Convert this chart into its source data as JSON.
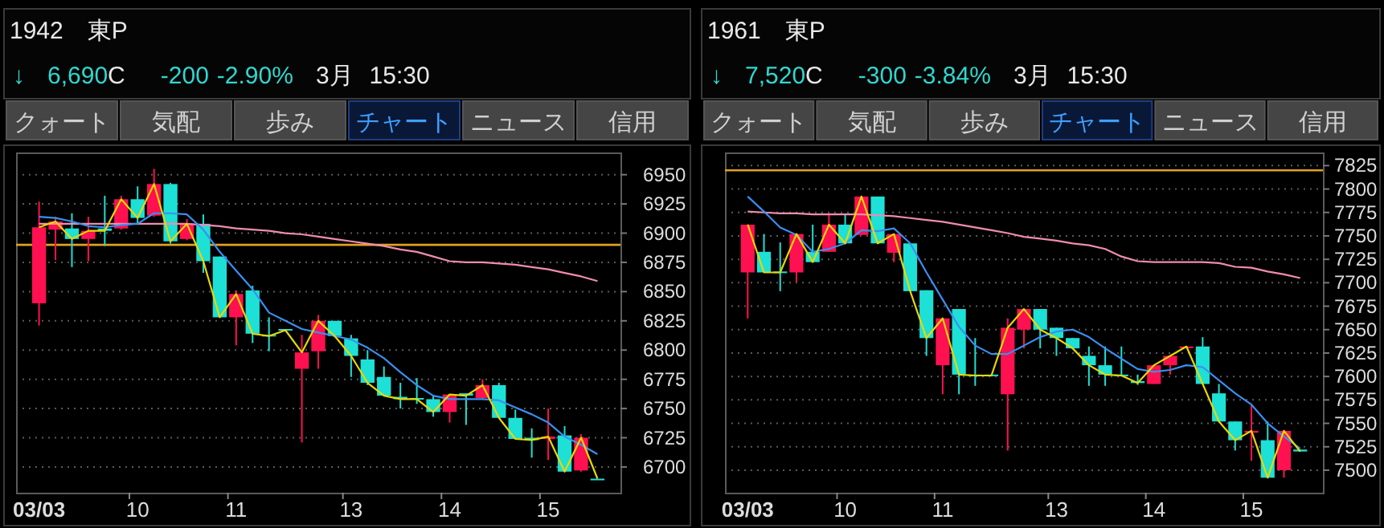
{
  "chart_data": [
    {
      "type": "candlestick",
      "title": "1942　東P",
      "subtitle": "↓ 6,690C -200 -2.90% 3月 15:30",
      "annotations": [
        "クォート",
        "気配",
        "歩み",
        "チャート",
        "ニュース",
        "信用"
      ],
      "categories": [
        "03/03",
        null,
        null,
        null,
        null,
        null,
        "10",
        null,
        null,
        null,
        null,
        null,
        "11",
        null,
        null,
        null,
        null,
        null,
        null,
        "13",
        null,
        null,
        null,
        null,
        null,
        "14",
        null,
        null,
        null,
        null,
        null,
        "15",
        null,
        null,
        null
      ],
      "ohlc": [
        [
          6840,
          6927,
          6821,
          6905
        ],
        [
          6903,
          6914,
          6877,
          6910
        ],
        [
          6904,
          6917,
          6871,
          6895
        ],
        [
          6895,
          6914,
          6876,
          6902
        ],
        [
          6904,
          6932,
          6889,
          6902
        ],
        [
          6904,
          6932,
          6903,
          6929
        ],
        [
          6929,
          6940,
          6907,
          6913
        ],
        [
          6915,
          6955,
          6914,
          6942
        ],
        [
          6942,
          6943,
          6891,
          6893
        ],
        [
          6895,
          6912,
          6894,
          6908
        ],
        [
          6908,
          6916,
          6866,
          6876
        ],
        [
          6880,
          6880,
          6828,
          6828
        ],
        [
          6828,
          6851,
          6804,
          6848
        ],
        [
          6851,
          6855,
          6806,
          6814
        ],
        [
          6813,
          6828,
          6799,
          6812
        ],
        [
          6818,
          6818,
          6816,
          6817
        ],
        [
          6784,
          6813,
          6721,
          6798
        ],
        [
          6799,
          6830,
          6784,
          6825
        ],
        [
          6825,
          6825,
          6811,
          6812
        ],
        [
          6810,
          6813,
          6777,
          6795
        ],
        [
          6792,
          6800,
          6770,
          6772
        ],
        [
          6777,
          6786,
          6761,
          6761
        ],
        [
          6760,
          6772,
          6750,
          6758
        ],
        [
          6759,
          6776,
          6754,
          6758
        ],
        [
          6758,
          6761,
          6743,
          6747
        ],
        [
          6747,
          6762,
          6738,
          6762
        ],
        [
          6763,
          6763,
          6736,
          6761
        ],
        [
          6759,
          6775,
          6758,
          6770
        ],
        [
          6770,
          6772,
          6742,
          6742
        ],
        [
          6742,
          6749,
          6724,
          6724
        ],
        [
          6725,
          6733,
          6708,
          6723
        ],
        [
          6724,
          6750,
          6706,
          6726
        ],
        [
          6727,
          6735,
          6696,
          6696
        ],
        [
          6697,
          6728,
          6696,
          6725
        ],
        [
          6690,
          6690,
          6690,
          6690
        ]
      ],
      "colors": [
        "#ff1050",
        "#ff1050",
        "#1de0d6",
        "#ff1050",
        "#1de0d6",
        "#ff1050",
        "#1de0d6",
        "#ff1050",
        "#1de0d6",
        "#ff1050",
        "#1de0d6",
        "#1de0d6",
        "#ff1050",
        "#1de0d6",
        "#1de0d6",
        "#1de0d6",
        "#ff1050",
        "#ff1050",
        "#1de0d6",
        "#1de0d6",
        "#1de0d6",
        "#1de0d6",
        "#1de0d6",
        "#1de0d6",
        "#1de0d6",
        "#ff1050",
        "#1de0d6",
        "#ff1050",
        "#1de0d6",
        "#1de0d6",
        "#1de0d6",
        "#ff1050",
        "#1de0d6",
        "#ff1050",
        "#1de0d6"
      ],
      "series": [
        {
          "type": "line",
          "color": "#f08cb0",
          "values": [
            6908,
            6908,
            6908,
            6908,
            6908,
            6908,
            6908,
            6908,
            6908,
            6908,
            6907,
            6906,
            6904,
            6903,
            6902,
            6900,
            6899,
            6897,
            6895,
            6893,
            6891,
            6889,
            6886,
            6884,
            6880,
            6876,
            6875,
            6875,
            6874,
            6873,
            6871,
            6869,
            6866,
            6863,
            6859
          ]
        },
        {
          "type": "line",
          "color": "#3a8ff0",
          "values": [
            6914,
            6913,
            6910,
            6906,
            6905,
            6907,
            6908,
            6917,
            6917,
            6916,
            6903,
            6884,
            6868,
            6852,
            6832,
            6825,
            6818,
            6815,
            6812,
            6809,
            6802,
            6793,
            6781,
            6770,
            6761,
            6758,
            6758,
            6758,
            6757,
            6751,
            6745,
            6738,
            6726,
            6719,
            6711
          ]
        },
        {
          "type": "line",
          "color": "#e8d800",
          "values": [
            6905,
            6910,
            6895,
            6902,
            6902,
            6929,
            6913,
            6942,
            6893,
            6908,
            6876,
            6828,
            6848,
            6814,
            6812,
            6817,
            6798,
            6825,
            6812,
            6795,
            6772,
            6761,
            6758,
            6758,
            6747,
            6762,
            6761,
            6770,
            6742,
            6724,
            6723,
            6726,
            6696,
            6725,
            6690
          ]
        }
      ],
      "ref_lines": [
        {
          "axis": "y",
          "value": 6890,
          "color": "#e0a020"
        }
      ],
      "ylim": [
        6678,
        6969
      ],
      "yticks": [
        6700,
        6725,
        6750,
        6775,
        6800,
        6825,
        6850,
        6875,
        6900,
        6925,
        6950
      ],
      "grid": "y"
    },
    {
      "type": "candlestick",
      "title": "1961　東P",
      "subtitle": "↓ 7,520C -300 -3.84% 3月 15:30",
      "annotations": [
        "クォート",
        "気配",
        "歩み",
        "チャート",
        "ニュース",
        "信用"
      ],
      "categories": [
        "03/03",
        null,
        null,
        null,
        null,
        null,
        "10",
        null,
        null,
        null,
        null,
        null,
        "11",
        null,
        null,
        null,
        null,
        null,
        null,
        "13",
        null,
        null,
        null,
        null,
        null,
        "14",
        null,
        null,
        null,
        null,
        null,
        "15",
        null,
        null,
        null
      ],
      "ohlc": [
        [
          7711,
          7762,
          7662,
          7762
        ],
        [
          7733,
          7752,
          7711,
          7711
        ],
        [
          7712,
          7743,
          7691,
          7711
        ],
        [
          7711,
          7752,
          7701,
          7752
        ],
        [
          7733,
          7762,
          7722,
          7722
        ],
        [
          7733,
          7774,
          7733,
          7762
        ],
        [
          7762,
          7774,
          7742,
          7742
        ],
        [
          7751,
          7792,
          7751,
          7792
        ],
        [
          7792,
          7792,
          7742,
          7742
        ],
        [
          7732,
          7752,
          7722,
          7752
        ],
        [
          7742,
          7742,
          7691,
          7691
        ],
        [
          7692,
          7692,
          7622,
          7641
        ],
        [
          7612,
          7662,
          7581,
          7662
        ],
        [
          7672,
          7672,
          7581,
          7602
        ],
        [
          7602,
          7641,
          7590,
          7601
        ],
        [
          7602,
          7602,
          7600,
          7601
        ],
        [
          7581,
          7662,
          7521,
          7652
        ],
        [
          7650,
          7672,
          7630,
          7672
        ],
        [
          7672,
          7672,
          7630,
          7650
        ],
        [
          7652,
          7652,
          7622,
          7641
        ],
        [
          7641,
          7641,
          7630,
          7630
        ],
        [
          7622,
          7632,
          7590,
          7612
        ],
        [
          7612,
          7632,
          7590,
          7602
        ],
        [
          7602,
          7632,
          7601,
          7601
        ],
        [
          7595,
          7602,
          7591,
          7593
        ],
        [
          7592,
          7612,
          7592,
          7612
        ],
        [
          7612,
          7622,
          7602,
          7622
        ],
        [
          7631,
          7632,
          7630,
          7632
        ],
        [
          7632,
          7642,
          7592,
          7592
        ],
        [
          7582,
          7592,
          7552,
          7552
        ],
        [
          7552,
          7552,
          7521,
          7532
        ],
        [
          7540,
          7570,
          7510,
          7542
        ],
        [
          7532,
          7552,
          7492,
          7492
        ],
        [
          7500,
          7542,
          7492,
          7542
        ],
        [
          7522,
          7522,
          7520,
          7520
        ]
      ],
      "colors": [
        "#ff1050",
        "#1de0d6",
        "#1de0d6",
        "#ff1050",
        "#1de0d6",
        "#ff1050",
        "#1de0d6",
        "#ff1050",
        "#1de0d6",
        "#ff1050",
        "#1de0d6",
        "#1de0d6",
        "#ff1050",
        "#1de0d6",
        "#1de0d6",
        "#1de0d6",
        "#ff1050",
        "#ff1050",
        "#1de0d6",
        "#1de0d6",
        "#1de0d6",
        "#1de0d6",
        "#1de0d6",
        "#1de0d6",
        "#1de0d6",
        "#ff1050",
        "#ff1050",
        "#ff1050",
        "#1de0d6",
        "#1de0d6",
        "#1de0d6",
        "#ff1050",
        "#1de0d6",
        "#ff1050",
        "#1de0d6"
      ],
      "series": [
        {
          "type": "line",
          "color": "#f08cb0",
          "values": [
            7776,
            7775,
            7774,
            7774,
            7773,
            7773,
            7773,
            7773,
            7772,
            7771,
            7769,
            7767,
            7765,
            7762,
            7759,
            7756,
            7753,
            7749,
            7747,
            7745,
            7742,
            7740,
            7736,
            7728,
            7723,
            7722,
            7722,
            7722,
            7722,
            7721,
            7717,
            7716,
            7712,
            7709,
            7705
          ]
        },
        {
          "type": "line",
          "color": "#3a8ff0",
          "values": [
            7792,
            7776,
            7759,
            7751,
            7733,
            7736,
            7742,
            7756,
            7755,
            7758,
            7742,
            7711,
            7682,
            7653,
            7633,
            7624,
            7624,
            7633,
            7642,
            7648,
            7650,
            7642,
            7630,
            7619,
            7608,
            7605,
            7607,
            7612,
            7610,
            7596,
            7582,
            7570,
            7550,
            7536,
            7523
          ]
        },
        {
          "type": "line",
          "color": "#e8d800",
          "values": [
            7762,
            7711,
            7711,
            7752,
            7722,
            7762,
            7742,
            7792,
            7742,
            7752,
            7691,
            7641,
            7662,
            7602,
            7601,
            7601,
            7652,
            7672,
            7650,
            7641,
            7630,
            7612,
            7602,
            7601,
            7593,
            7612,
            7622,
            7632,
            7592,
            7552,
            7532,
            7542,
            7492,
            7542,
            7520
          ]
        }
      ],
      "ref_lines": [
        {
          "axis": "y",
          "value": 7820,
          "color": "#e0a020"
        }
      ],
      "ylim": [
        7476,
        7839
      ],
      "yticks": [
        7500,
        7525,
        7550,
        7575,
        7600,
        7625,
        7650,
        7675,
        7700,
        7725,
        7750,
        7775,
        7800,
        7825
      ],
      "grid": "y"
    }
  ]
}
